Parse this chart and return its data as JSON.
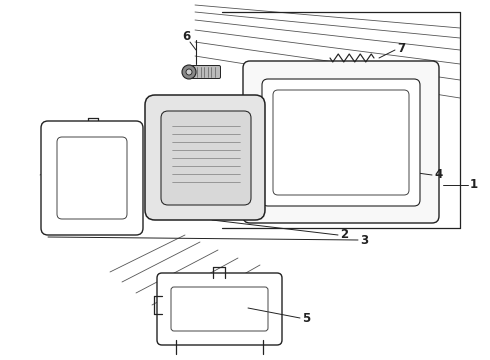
{
  "bg_color": "#ffffff",
  "line_color": "#222222",
  "label_fontsize": 8.5,
  "figsize": [
    4.9,
    3.6
  ],
  "dpi": 100,
  "panel_lines": [
    [
      195,
      5,
      460,
      28
    ],
    [
      195,
      12,
      460,
      38
    ],
    [
      195,
      20,
      460,
      50
    ],
    [
      195,
      30,
      460,
      64
    ],
    [
      195,
      42,
      460,
      80
    ],
    [
      195,
      56,
      460,
      98
    ]
  ],
  "body_diag_lines": [
    [
      105,
      145,
      40,
      175
    ],
    [
      110,
      158,
      42,
      192
    ],
    [
      115,
      172,
      44,
      210
    ],
    [
      122,
      186,
      46,
      228
    ]
  ],
  "lower_diag_lines": [
    [
      185,
      235,
      110,
      272
    ],
    [
      200,
      242,
      122,
      282
    ],
    [
      218,
      250,
      136,
      293
    ],
    [
      238,
      258,
      152,
      305
    ],
    [
      260,
      265,
      170,
      316
    ]
  ]
}
